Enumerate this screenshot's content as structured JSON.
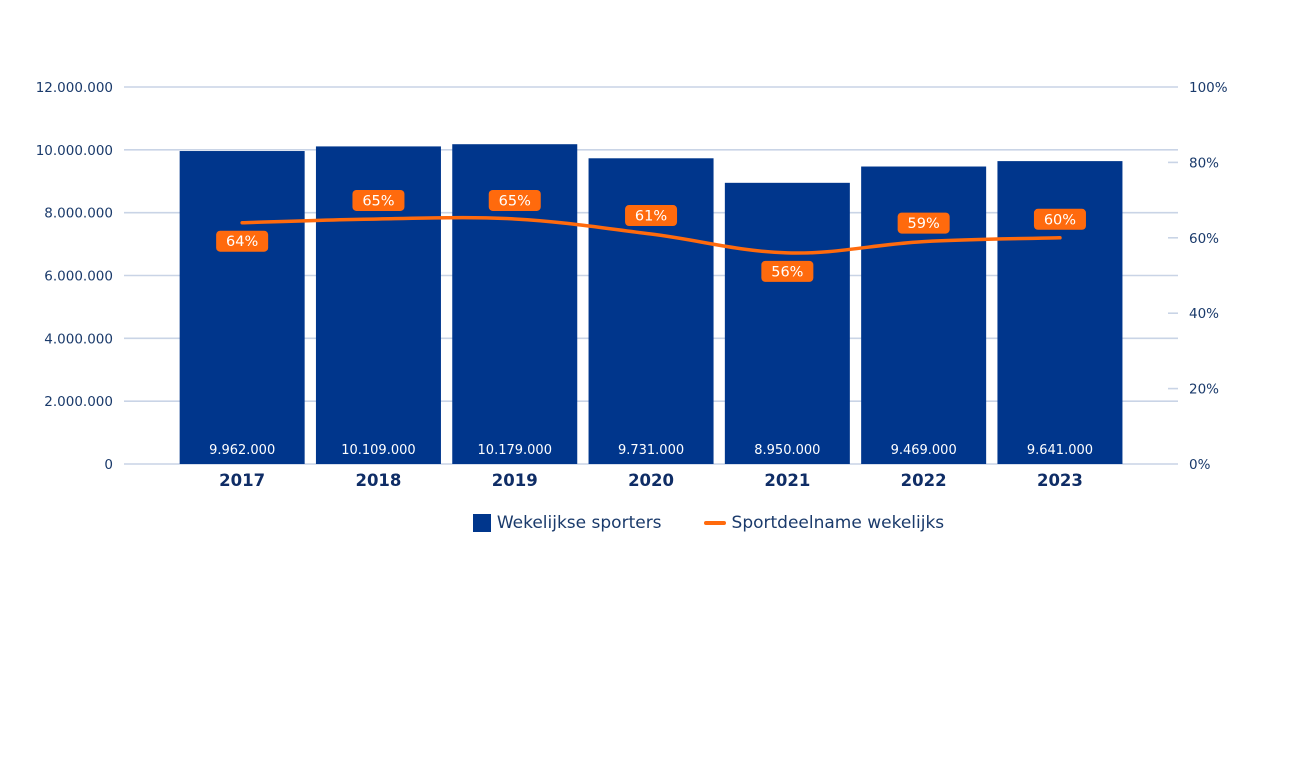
{
  "colors": {
    "bar": "#00368c",
    "line": "#ff6a0d",
    "grid": "#c9d4e6",
    "axis_text": "#1a3a6b",
    "bar_label": "#ffffff"
  },
  "legend": {
    "bars_label": "Wekelijkse sporters",
    "line_label": "Sportdeelname wekelijks",
    "placement": "bottom-center"
  },
  "chart_data": {
    "type": "bar",
    "categories": [
      "2017",
      "2018",
      "2019",
      "2020",
      "2021",
      "2022",
      "2023"
    ],
    "series": [
      {
        "name": "Wekelijkse sporters",
        "type": "bar",
        "axis": "left",
        "values": [
          9962000,
          10109000,
          10179000,
          9731000,
          8950000,
          9469000,
          9641000
        ],
        "labels": [
          "9.962.000",
          "10.109.000",
          "10.179.000",
          "9.731.000",
          "8.950.000",
          "9.469.000",
          "9.641.000"
        ]
      },
      {
        "name": "Sportdeelname wekelijks",
        "type": "line",
        "axis": "right",
        "values": [
          64,
          65,
          65,
          61,
          56,
          59,
          60
        ],
        "labels": [
          "64%",
          "65%",
          "65%",
          "61%",
          "56%",
          "59%",
          "60%"
        ]
      }
    ],
    "ylim": [
      0,
      12000000
    ],
    "y_ticks": [
      0,
      2000000,
      4000000,
      6000000,
      8000000,
      10000000,
      12000000
    ],
    "y_tick_labels": [
      "0",
      "2.000.000",
      "4.000.000",
      "6.000.000",
      "8.000.000",
      "10.000.000",
      "12.000.000"
    ],
    "y2lim": [
      0,
      100
    ],
    "y2_ticks": [
      0,
      20,
      40,
      60,
      80,
      100
    ],
    "y2_tick_labels": [
      "0%",
      "20%",
      "40%",
      "60%",
      "80%",
      "100%"
    ],
    "grid": true,
    "title": "",
    "xlabel": "",
    "ylabel": ""
  }
}
